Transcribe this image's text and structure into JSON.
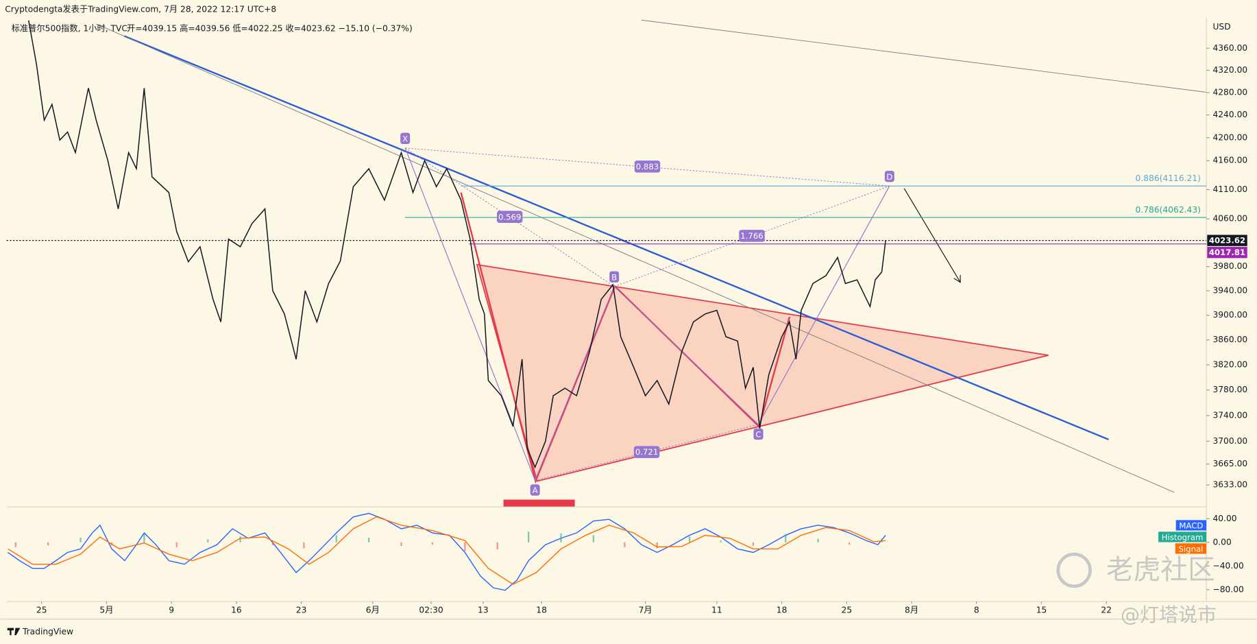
{
  "header": {
    "publisher": "Cryptodengta发表于TradingView.com, 7月 28, 2022 12:17 UTC+8"
  },
  "footer": {
    "brand": "TradingView"
  },
  "watermark": [
    "老虎社区",
    "@灯塔说市"
  ],
  "chart_data": [
    {
      "type": "line",
      "symbol": "标准普尔500指数, 1小时, TVC",
      "ohlc": "开=4039.15  高=4039.56  低=4022.25  收=4023.62  −15.10 (−0.37%)",
      "y_unit": "USD",
      "log_scale": true,
      "grid": false,
      "color": "#131722",
      "ylim": [
        3600,
        4416
      ],
      "yticks": [
        {
          "value": 4360,
          "label": "4360.00"
        },
        {
          "value": 4320,
          "label": "4320.00"
        },
        {
          "value": 4280,
          "label": "4280.00"
        },
        {
          "value": 4240,
          "label": "4240.00"
        },
        {
          "value": 4200,
          "label": "4200.00"
        },
        {
          "value": 4160,
          "label": "4160.00"
        },
        {
          "value": 4110,
          "label": "4110.00"
        },
        {
          "value": 4060,
          "label": "4060.00"
        },
        {
          "value": 3980,
          "label": "3980.00"
        },
        {
          "value": 3940,
          "label": "3940.00"
        },
        {
          "value": 3900,
          "label": "3900.00"
        },
        {
          "value": 3860,
          "label": "3860.00"
        },
        {
          "value": 3820,
          "label": "3820.00"
        },
        {
          "value": 3780,
          "label": "3780.00"
        },
        {
          "value": 3740,
          "label": "3740.00"
        },
        {
          "value": 3700,
          "label": "3700.00"
        },
        {
          "value": 3665,
          "label": "3665.00"
        },
        {
          "value": 3633,
          "label": "3633.00"
        }
      ],
      "xlim": [
        -2.7,
        89.7
      ],
      "xticks": [
        {
          "value": 0,
          "label": "25"
        },
        {
          "value": 5,
          "label": "5月"
        },
        {
          "value": 10,
          "label": "9"
        },
        {
          "value": 15,
          "label": "16"
        },
        {
          "value": 20,
          "label": "23"
        },
        {
          "value": 25.5,
          "label": "6月"
        },
        {
          "value": 30,
          "label": "02:30"
        },
        {
          "value": 34,
          "label": "13"
        },
        {
          "value": 38.5,
          "label": "18"
        },
        {
          "value": 46.5,
          "label": "7月"
        },
        {
          "value": 52,
          "label": "11"
        },
        {
          "value": 57,
          "label": "18"
        },
        {
          "value": 62,
          "label": "25"
        },
        {
          "value": 67,
          "label": "8月"
        },
        {
          "value": 72,
          "label": "8"
        },
        {
          "value": 77,
          "label": "15"
        },
        {
          "value": 82,
          "label": "22"
        }
      ],
      "x": [
        -1.0,
        -0.4,
        0.2,
        0.8,
        1.4,
        2.0,
        2.6,
        3.6,
        4.2,
        5.1,
        5.9,
        6.7,
        7.3,
        7.9,
        8.5,
        9.8,
        10.4,
        11.3,
        12.2,
        13.2,
        13.8,
        14.4,
        15.3,
        16.2,
        17.2,
        17.8,
        18.7,
        19.6,
        20.3,
        21.2,
        22.1,
        23.0,
        24.0,
        25.2,
        26.4,
        27.7,
        28.6,
        29.5,
        30.4,
        31.2,
        32.3,
        33.0,
        33.7,
        34.1,
        34.4,
        35.4,
        36.3,
        37.0,
        37.4,
        38.0,
        38.8,
        39.4,
        40.3,
        41.2,
        42.2,
        43.1,
        44.0,
        44.6,
        45.6,
        46.5,
        47.4,
        48.3,
        49.3,
        50.2,
        51.1,
        52.0,
        52.7,
        53.6,
        54.2,
        54.8,
        55.3,
        56.0,
        57.0,
        57.6,
        58.1,
        58.5,
        59.4,
        60.4,
        61.3,
        61.9,
        62.8,
        63.8,
        64.2,
        64.7,
        65.0
      ],
      "values": [
        4411,
        4331,
        4231,
        4259,
        4196,
        4210,
        4174,
        4288,
        4231,
        4160,
        4077,
        4174,
        4146,
        4288,
        4132,
        4105,
        4039,
        3988,
        4013,
        3926,
        3889,
        4026,
        4013,
        4052,
        4077,
        3940,
        3902,
        3829,
        3940,
        3889,
        3952,
        3989,
        4115,
        4146,
        4092,
        4174,
        4105,
        4160,
        4115,
        4146,
        4092,
        4026,
        3926,
        3902,
        3795,
        3771,
        3723,
        3829,
        3689,
        3660,
        3700,
        3771,
        3783,
        3771,
        3841,
        3926,
        3950,
        3865,
        3816,
        3771,
        3795,
        3758,
        3841,
        3889,
        3902,
        3908,
        3865,
        3858,
        3783,
        3816,
        3720,
        3804,
        3865,
        3889,
        3829,
        3908,
        3952,
        3965,
        3995,
        3952,
        3958,
        3914,
        3958,
        3971,
        4023.62
      ],
      "price_lines": [
        4023.62,
        4017.81
      ],
      "price_line_colors": [
        "#131722",
        "#9c27b0"
      ],
      "fib_levels": [
        {
          "value": 4116.21,
          "label": "0.886(4116.21)",
          "color": "#5fa8d3"
        },
        {
          "value": 4062.43,
          "label": "0.786(4062.43)",
          "color": "#22ab94"
        }
      ],
      "pattern": {
        "color": "#9575cd",
        "points": [
          {
            "label": "X",
            "x": 28.0,
            "value": 4182
          },
          {
            "label": "A",
            "x": 38.0,
            "value": 3640
          },
          {
            "label": "B",
            "x": 44.1,
            "value": 3947
          },
          {
            "label": "C",
            "x": 55.2,
            "value": 3726
          },
          {
            "label": "D",
            "x": 65.3,
            "value": 4116.21
          }
        ],
        "ratios": [
          0.883,
          0.569,
          1.766,
          0.721
        ]
      }
    },
    {
      "type": "line",
      "ylim": [
        -100,
        60
      ],
      "yticks": [
        {
          "value": 40,
          "label": "40.00"
        },
        {
          "value": 0,
          "label": "0.00"
        },
        {
          "value": -40,
          "label": "−40.00"
        },
        {
          "value": -80,
          "label": "−80.00"
        }
      ],
      "xlim": [
        -2.7,
        89.7
      ],
      "series": [
        {
          "name": "MACD",
          "color": "#2962ff",
          "x": [
            -2.6,
            -1.7,
            -0.7,
            0.2,
            1.1,
            2.0,
            3.0,
            3.9,
            4.5,
            5.4,
            6.4,
            7.3,
            7.9,
            8.8,
            9.8,
            11.0,
            12.2,
            13.5,
            14.7,
            15.9,
            17.2,
            18.4,
            19.6,
            20.6,
            21.5,
            22.7,
            24.0,
            25.2,
            26.4,
            27.7,
            28.9,
            30.1,
            31.4,
            32.6,
            33.8,
            34.8,
            35.7,
            36.6,
            37.5,
            38.8,
            40.0,
            41.2,
            42.5,
            43.7,
            44.9,
            46.2,
            47.4,
            48.6,
            49.9,
            51.1,
            52.3,
            53.6,
            54.8,
            56.0,
            57.3,
            58.5,
            59.8,
            61.0,
            62.2,
            63.5,
            64.4,
            65.0
          ],
          "values": [
            -17,
            -31,
            -44,
            -44,
            -31,
            -17,
            -11,
            16,
            29,
            -11,
            -31,
            -4,
            16,
            -4,
            -31,
            -37,
            -17,
            -4,
            23,
            7,
            16,
            -17,
            -51,
            -31,
            -11,
            16,
            43,
            49,
            39,
            23,
            29,
            16,
            12,
            -17,
            -57,
            -77,
            -81,
            -64,
            -31,
            -4,
            7,
            16,
            36,
            39,
            23,
            -4,
            -17,
            -4,
            12,
            23,
            9,
            -11,
            -17,
            -4,
            12,
            23,
            29,
            25,
            16,
            3,
            -4,
            12
          ]
        },
        {
          "name": "Histogram",
          "type": "bar",
          "color": "#22ab94",
          "negative_color": "#ef5350",
          "x": [
            -2.0,
            0.5,
            3.0,
            5.4,
            7.9,
            10.4,
            12.8,
            15.3,
            17.8,
            20.2,
            22.7,
            25.2,
            27.7,
            30.1,
            32.6,
            35.1,
            37.5,
            40.0,
            42.5,
            44.9,
            47.4,
            49.9,
            52.3,
            54.8,
            57.3,
            59.8,
            62.2,
            64.7
          ],
          "values": [
            -8,
            -5,
            8,
            -5,
            15,
            -8,
            5,
            10,
            -5,
            -10,
            12,
            8,
            -6,
            -4,
            -15,
            -12,
            18,
            15,
            12,
            -8,
            -10,
            10,
            3,
            -6,
            14,
            6,
            -4,
            6
          ]
        },
        {
          "name": "Signal",
          "color": "#ff6d00",
          "x": [
            -2.6,
            -0.7,
            1.1,
            3.0,
            4.5,
            6.0,
            7.9,
            9.8,
            11.6,
            13.5,
            15.3,
            17.2,
            19.0,
            20.6,
            22.1,
            24.0,
            25.8,
            27.7,
            30.1,
            32.6,
            34.4,
            36.3,
            38.1,
            40.0,
            41.9,
            43.7,
            45.6,
            47.4,
            49.3,
            51.1,
            53.0,
            54.8,
            56.7,
            58.5,
            60.4,
            62.2,
            64.1,
            65.0
          ],
          "values": [
            -11,
            -37,
            -37,
            -20,
            9,
            -11,
            -1,
            -20,
            -31,
            -17,
            7,
            9,
            -11,
            -37,
            -17,
            23,
            43,
            29,
            20,
            3,
            -44,
            -71,
            -51,
            -11,
            12,
            29,
            16,
            -8,
            -7,
            12,
            7,
            -11,
            -11,
            12,
            25,
            20,
            1,
            3
          ]
        }
      ]
    }
  ]
}
